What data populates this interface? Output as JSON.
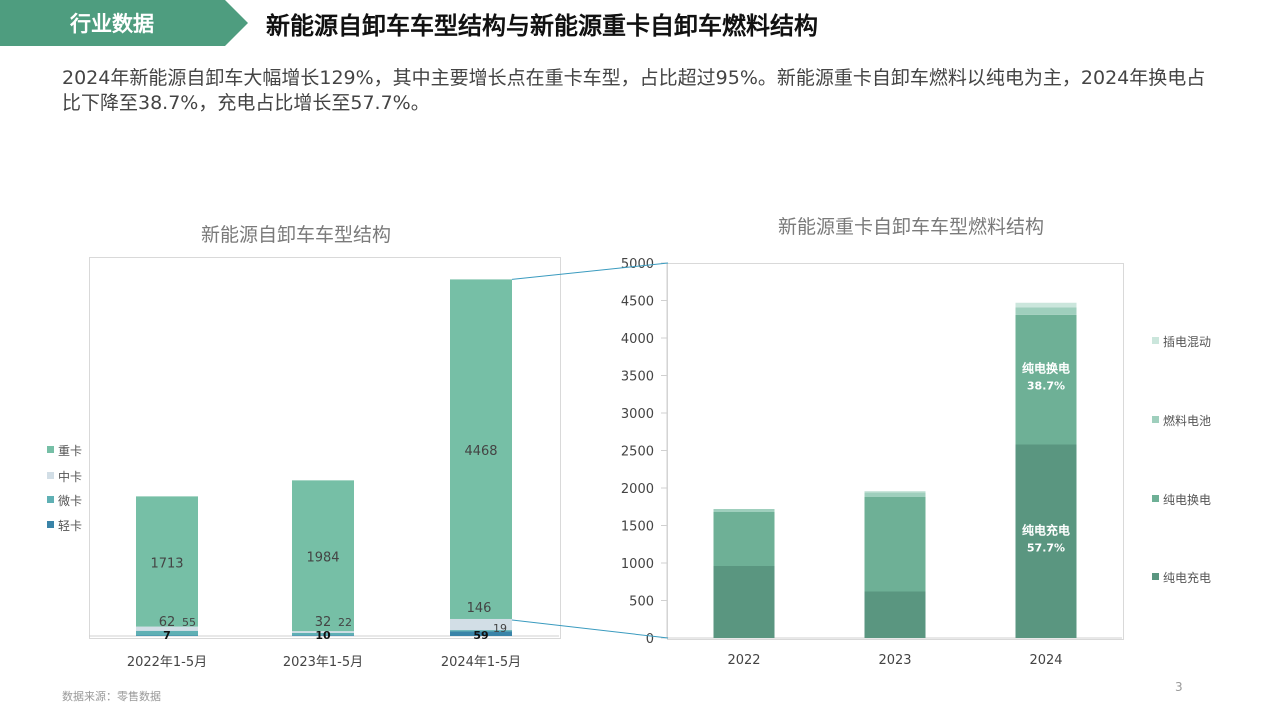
{
  "header": {
    "tag": "行业数据",
    "title": "新能源自卸车车型结构与新能源重卡自卸车燃料结构",
    "banner_color": "#4e9d7f"
  },
  "summary": "2024年新能源自卸车大幅增长129%，其中主要增长点在重卡车型，占比超过95%。新能源重卡自卸车燃料以纯电为主，2024年换电占比下降至38.7%，充电占比增长至57.7%。",
  "footer": {
    "source": "数据来源：零售数据",
    "page_number": "3"
  },
  "chart_data": [
    {
      "type": "bar",
      "stacked": true,
      "title": "新能源自卸车车型结构",
      "categories": [
        "2022年1-5月",
        "2023年1-5月",
        "2024年1-5月"
      ],
      "series": [
        {
          "name": "轻卡",
          "values": [
            7,
            10,
            59
          ],
          "labels": [
            "7",
            "10",
            "59"
          ],
          "color": "#3a84a8"
        },
        {
          "name": "微卡",
          "values": [
            62,
            32,
            19
          ],
          "labels": [
            "62",
            "32",
            "19"
          ],
          "color": "#5fb0b4"
        },
        {
          "name": "中卡",
          "values": [
            55,
            22,
            146
          ],
          "labels": [
            "55",
            "22",
            "146"
          ],
          "color": "#d2dee6"
        },
        {
          "name": "重卡",
          "values": [
            1713,
            1984,
            4468
          ],
          "labels": [
            "1713",
            "1984",
            "4468"
          ],
          "color": "#76bfa6"
        }
      ],
      "legend_position": "left",
      "legend_order": [
        "重卡",
        "中卡",
        "微卡",
        "轻卡"
      ],
      "ylim": [
        0,
        5000
      ],
      "grid": false
    },
    {
      "type": "bar",
      "stacked": true,
      "title": "新能源重卡自卸车车型燃料结构",
      "categories": [
        "2022",
        "2023",
        "2024"
      ],
      "series": [
        {
          "name": "纯电充电",
          "values": [
            960,
            620,
            2580
          ],
          "color": "#5a9680"
        },
        {
          "name": "纯电换电",
          "values": [
            720,
            1260,
            1730
          ],
          "color": "#6eb096"
        },
        {
          "name": "燃料电池",
          "values": [
            40,
            60,
            100
          ],
          "color": "#9fcfbd"
        },
        {
          "name": "插电混动",
          "values": [
            0,
            20,
            60
          ],
          "color": "#cbe6dc"
        }
      ],
      "annotations": [
        {
          "category": "2024",
          "series": "纯电换电",
          "line1": "纯电换电",
          "line2": "38.7%"
        },
        {
          "category": "2024",
          "series": "纯电充电",
          "line1": "纯电充电",
          "line2": "57.7%"
        }
      ],
      "y_ticks": [
        "0",
        "500",
        "1000",
        "1500",
        "2000",
        "2500",
        "3000",
        "3500",
        "4000",
        "4500",
        "5000"
      ],
      "ylim": [
        0,
        5000
      ],
      "legend_position": "right",
      "legend_order": [
        "插电混动",
        "燃料电池",
        "纯电换电",
        "纯电充电"
      ],
      "grid": false
    }
  ]
}
